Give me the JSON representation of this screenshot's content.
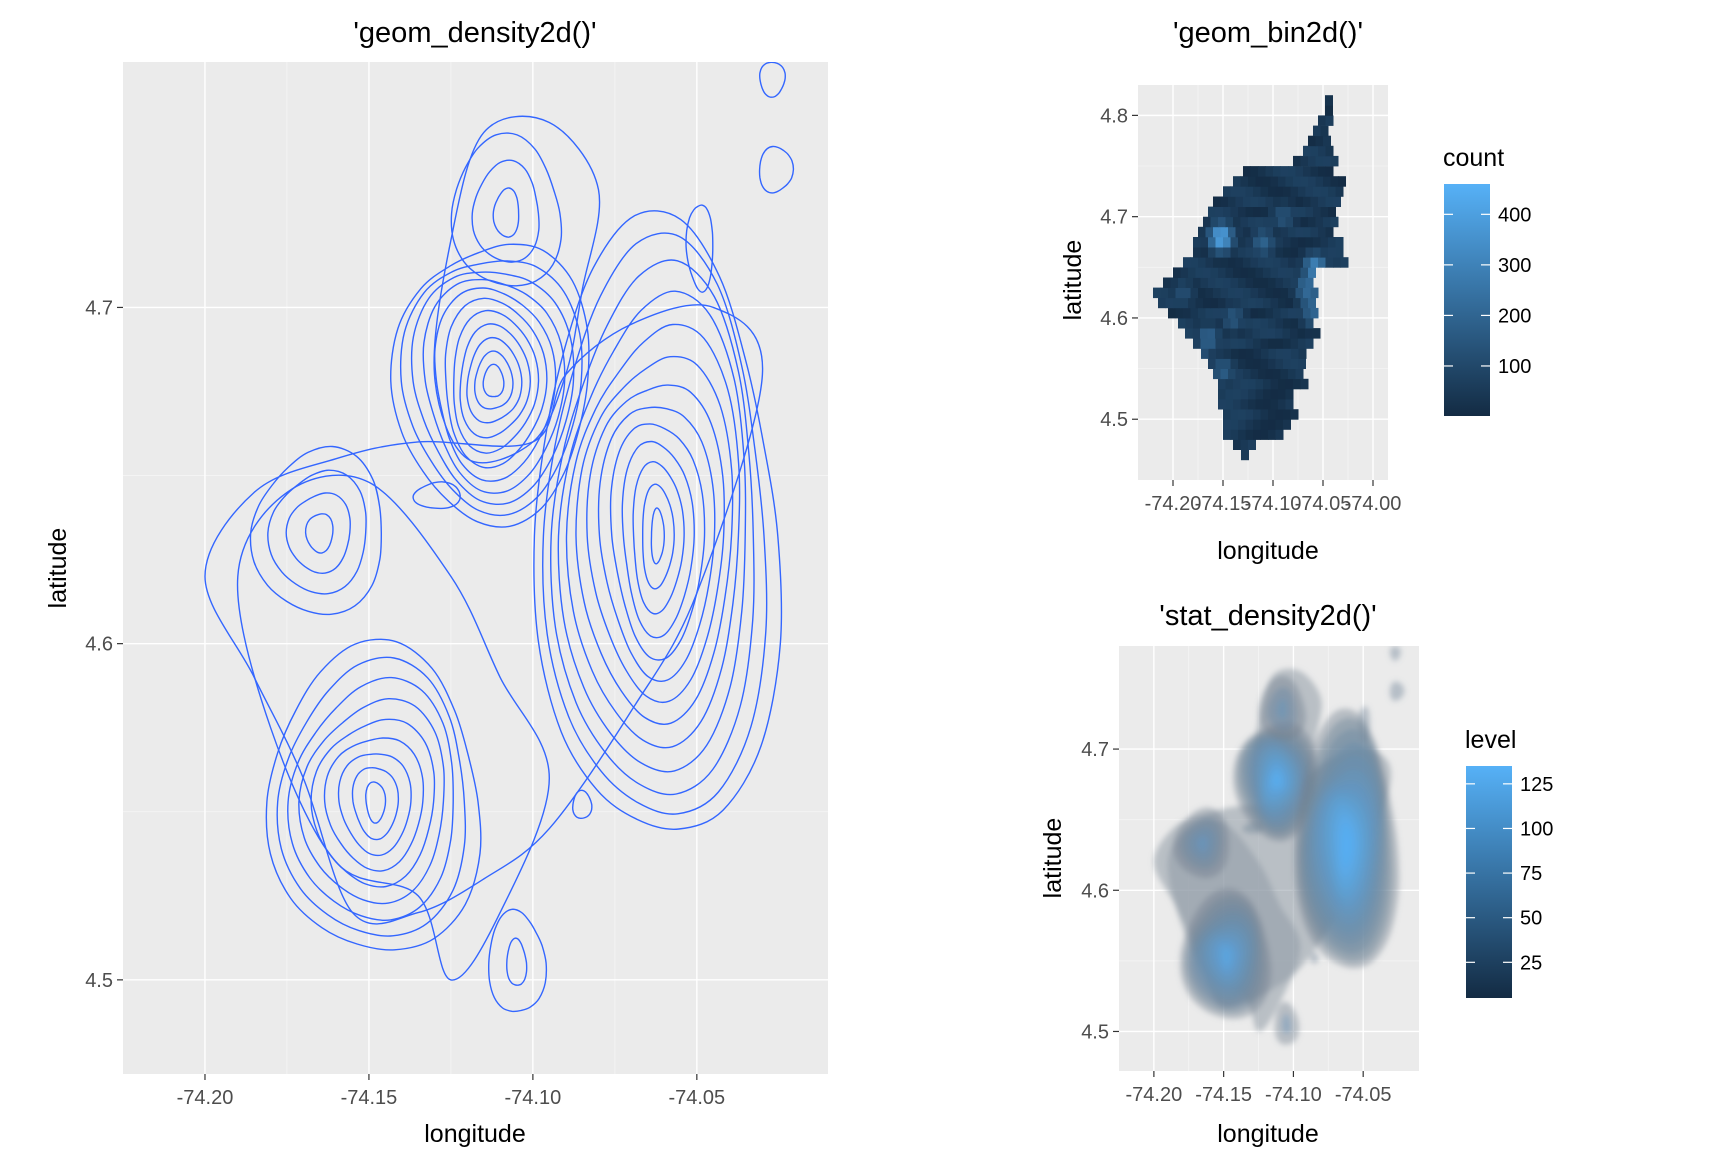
{
  "chart_data": [
    {
      "id": "left",
      "type": "line",
      "geom": "density2d",
      "title": "'geom_density2d()'",
      "xlabel": "longitude",
      "ylabel": "latitude",
      "xlim": [
        -74.225,
        -74.01
      ],
      "ylim": [
        4.472,
        4.773
      ],
      "x_ticks": [
        -74.2,
        -74.15,
        -74.1,
        -74.05
      ],
      "x_tick_labels": [
        "-74.20",
        "-74.15",
        "-74.10",
        "-74.05"
      ],
      "y_ticks": [
        4.5,
        4.6,
        4.7
      ],
      "y_tick_labels": [
        "4.5",
        "4.6",
        "4.7"
      ],
      "line_color": "#3366ff",
      "grid": true,
      "contours": [
        {
          "center": [
            -74.112,
            4.678
          ],
          "radius": [
            0.003,
            0.005
          ],
          "levels": 11,
          "step": [
            0.0026,
            0.0038
          ]
        },
        {
          "center": [
            -74.062,
            4.632
          ],
          "radius": [
            0.002,
            0.008
          ],
          "levels": 13,
          "step": [
            0.003,
            0.0068
          ]
        },
        {
          "center": [
            -74.148,
            4.553
          ],
          "radius": [
            0.003,
            0.006
          ],
          "levels": 9,
          "step": [
            0.0038,
            0.0048
          ]
        },
        {
          "center": [
            -74.165,
            4.633
          ],
          "radius": [
            0.004,
            0.006
          ],
          "levels": 4,
          "step": [
            0.0055,
            0.006
          ]
        },
        {
          "center": [
            -74.108,
            4.728
          ],
          "radius": [
            0.004,
            0.007
          ],
          "levels": 3,
          "step": [
            0.0065,
            0.0075
          ]
        },
        {
          "center": [
            -74.105,
            4.505
          ],
          "radius": [
            0.003,
            0.007
          ],
          "levels": 2,
          "step": [
            0.0055,
            0.0085
          ]
        },
        {
          "center": [
            -74.026,
            4.741
          ],
          "radius": [
            0.005,
            0.007
          ],
          "levels": 1,
          "step": [
            0.0,
            0.0
          ]
        },
        {
          "center": [
            -74.027,
            4.768
          ],
          "radius": [
            0.004,
            0.005
          ],
          "levels": 1,
          "step": [
            0.0,
            0.0
          ]
        },
        {
          "center": [
            -74.049,
            4.718
          ],
          "radius": [
            0.004,
            0.013
          ],
          "levels": 1,
          "step": [
            0.0,
            0.0
          ]
        },
        {
          "center": [
            -74.129,
            4.644
          ],
          "radius": [
            0.007,
            0.004
          ],
          "levels": 1,
          "step": [
            0.0,
            0.0
          ]
        },
        {
          "center": [
            -74.085,
            4.552
          ],
          "radius": [
            0.003,
            0.004
          ],
          "levels": 1,
          "step": [
            0.0,
            0.0
          ]
        }
      ],
      "outer_contours": [
        {
          "points": [
            [
              -74.2,
              4.62
            ],
            [
              -74.185,
              4.645
            ],
            [
              -74.16,
              4.655
            ],
            [
              -74.135,
              4.66
            ],
            [
              -74.1,
              4.66
            ],
            [
              -74.09,
              4.68
            ],
            [
              -74.07,
              4.695
            ],
            [
              -74.045,
              4.7
            ],
            [
              -74.03,
              4.68
            ],
            [
              -74.05,
              4.615
            ],
            [
              -74.07,
              4.58
            ],
            [
              -74.095,
              4.545
            ],
            [
              -74.115,
              4.53
            ],
            [
              -74.135,
              4.52
            ],
            [
              -74.155,
              4.52
            ],
            [
              -74.17,
              4.56
            ],
            [
              -74.185,
              4.59
            ]
          ]
        },
        {
          "points": [
            [
              -74.13,
              4.68
            ],
            [
              -74.125,
              4.72
            ],
            [
              -74.115,
              4.752
            ],
            [
              -74.095,
              4.755
            ],
            [
              -74.08,
              4.735
            ],
            [
              -74.085,
              4.705
            ],
            [
              -74.09,
              4.68
            ],
            [
              -74.1,
              4.66
            ],
            [
              -74.12,
              4.655
            ]
          ]
        },
        {
          "points": [
            [
              -74.19,
              4.62
            ],
            [
              -74.175,
              4.645
            ],
            [
              -74.15,
              4.648
            ],
            [
              -74.125,
              4.62
            ],
            [
              -74.11,
              4.59
            ],
            [
              -74.095,
              4.56
            ],
            [
              -74.11,
              4.52
            ],
            [
              -74.125,
              4.5
            ],
            [
              -74.135,
              4.525
            ],
            [
              -74.16,
              4.535
            ],
            [
              -74.18,
              4.575
            ]
          ]
        }
      ]
    },
    {
      "id": "top-right",
      "type": "heatmap",
      "geom": "bin2d",
      "title": "'geom_bin2d()'",
      "xlabel": "longitude",
      "ylabel": "latitude",
      "xlim": [
        -74.235,
        -73.985
      ],
      "ylim": [
        4.44,
        4.83
      ],
      "x_ticks": [
        -74.2,
        -74.15,
        -74.1,
        -74.05,
        -74.0
      ],
      "x_tick_labels": [
        "-74.20",
        "-74.15",
        "-74.10",
        "-74.05",
        "-74.00"
      ],
      "y_ticks": [
        4.5,
        4.6,
        4.7,
        4.8
      ],
      "y_tick_labels": [
        "4.5",
        "4.6",
        "4.7",
        "4.8"
      ],
      "bin_width": [
        0.0075,
        0.0099
      ],
      "color_low": "#132b43",
      "color_high": "#56b1f7",
      "count_range": [
        1,
        460
      ],
      "rows": [
        {
          "lat": 4.465,
          "x": [
            -74.132,
            -74.125
          ]
        },
        {
          "lat": 4.475,
          "x": [
            -74.14,
            -74.118
          ]
        },
        {
          "lat": 4.485,
          "x": [
            -74.15,
            -74.095
          ]
        },
        {
          "lat": 4.495,
          "x": [
            -74.15,
            -74.085
          ]
        },
        {
          "lat": 4.505,
          "x": [
            -74.15,
            -74.08
          ]
        },
        {
          "lat": 4.515,
          "x": [
            -74.155,
            -74.085
          ]
        },
        {
          "lat": 4.525,
          "x": [
            -74.155,
            -74.08
          ]
        },
        {
          "lat": 4.535,
          "x": [
            -74.155,
            -74.07
          ]
        },
        {
          "lat": 4.545,
          "x": [
            -74.16,
            -74.07
          ]
        },
        {
          "lat": 4.555,
          "x": [
            -74.165,
            -74.07
          ]
        },
        {
          "lat": 4.565,
          "x": [
            -74.172,
            -74.07
          ]
        },
        {
          "lat": 4.575,
          "x": [
            -74.18,
            -74.065
          ]
        },
        {
          "lat": 4.585,
          "x": [
            -74.188,
            -74.06
          ]
        },
        {
          "lat": 4.595,
          "x": [
            -74.195,
            -74.06
          ]
        },
        {
          "lat": 4.605,
          "x": [
            -74.205,
            -74.06
          ]
        },
        {
          "lat": 4.615,
          "x": [
            -74.215,
            -74.06
          ]
        },
        {
          "lat": 4.625,
          "x": [
            -74.22,
            -74.06
          ]
        },
        {
          "lat": 4.635,
          "x": [
            -74.21,
            -74.06
          ]
        },
        {
          "lat": 4.645,
          "x": [
            -74.2,
            -74.06
          ]
        },
        {
          "lat": 4.655,
          "x": [
            -74.19,
            -74.03
          ]
        },
        {
          "lat": 4.665,
          "x": [
            -74.18,
            -74.03
          ]
        },
        {
          "lat": 4.675,
          "x": [
            -74.18,
            -74.035
          ]
        },
        {
          "lat": 4.685,
          "x": [
            -74.175,
            -74.04
          ]
        },
        {
          "lat": 4.695,
          "x": [
            -74.17,
            -74.04
          ]
        },
        {
          "lat": 4.705,
          "x": [
            -74.165,
            -74.04
          ]
        },
        {
          "lat": 4.715,
          "x": [
            -74.16,
            -74.035
          ]
        },
        {
          "lat": 4.725,
          "x": [
            -74.15,
            -74.03
          ]
        },
        {
          "lat": 4.735,
          "x": [
            -74.14,
            -74.03
          ]
        },
        {
          "lat": 4.745,
          "x": [
            -74.13,
            -74.04
          ]
        },
        {
          "lat": 4.755,
          "x": [
            -74.08,
            -74.04
          ]
        },
        {
          "lat": 4.765,
          "x": [
            -74.07,
            -74.045
          ]
        },
        {
          "lat": 4.775,
          "x": [
            -74.065,
            -74.048
          ]
        },
        {
          "lat": 4.785,
          "x": [
            -74.06,
            -74.05
          ]
        },
        {
          "lat": 4.795,
          "x": [
            -74.055,
            -74.04
          ]
        },
        {
          "lat": 4.805,
          "x": [
            -74.048,
            -74.045
          ]
        },
        {
          "lat": 4.815,
          "x": [
            -74.048,
            -74.042
          ]
        }
      ],
      "hotspots": [
        {
          "x": -74.152,
          "y": 4.68,
          "count": 430
        },
        {
          "x": -74.058,
          "y": 4.65,
          "count": 320
        },
        {
          "x": -74.06,
          "y": 4.64,
          "count": 260
        },
        {
          "x": -74.062,
          "y": 4.62,
          "count": 220
        },
        {
          "x": -74.165,
          "y": 4.58,
          "count": 200
        },
        {
          "x": -74.175,
          "y": 4.56,
          "count": 180
        },
        {
          "x": -74.11,
          "y": 4.675,
          "count": 190
        },
        {
          "x": -74.14,
          "y": 4.6,
          "count": 150
        },
        {
          "x": -74.09,
          "y": 4.7,
          "count": 140
        },
        {
          "x": -74.06,
          "y": 4.605,
          "count": 200
        },
        {
          "x": -74.066,
          "y": 4.63,
          "count": 240
        },
        {
          "x": -74.15,
          "y": 4.548,
          "count": 170
        },
        {
          "x": -74.19,
          "y": 4.625,
          "count": 120
        }
      ],
      "legend": {
        "title": "count",
        "ticks": [
          100,
          200,
          300,
          400
        ],
        "range": [
          1,
          460
        ]
      }
    },
    {
      "id": "bottom-right",
      "type": "area",
      "geom": "stat_density2d",
      "title": "'stat_density2d()'",
      "xlabel": "longitude",
      "ylabel": "latitude",
      "xlim": [
        -74.225,
        -74.01
      ],
      "ylim": [
        4.472,
        4.773
      ],
      "x_ticks": [
        -74.2,
        -74.15,
        -74.1,
        -74.05
      ],
      "x_tick_labels": [
        "-74.20",
        "-74.15",
        "-74.10",
        "-74.05"
      ],
      "y_ticks": [
        4.5,
        4.6,
        4.7
      ],
      "y_tick_labels": [
        "4.5",
        "4.6",
        "4.7"
      ],
      "color_low": "#132b43",
      "color_high": "#56b1f7",
      "legend": {
        "title": "level",
        "ticks": [
          25,
          50,
          75,
          100,
          125
        ],
        "range": [
          5,
          135
        ]
      }
    }
  ]
}
